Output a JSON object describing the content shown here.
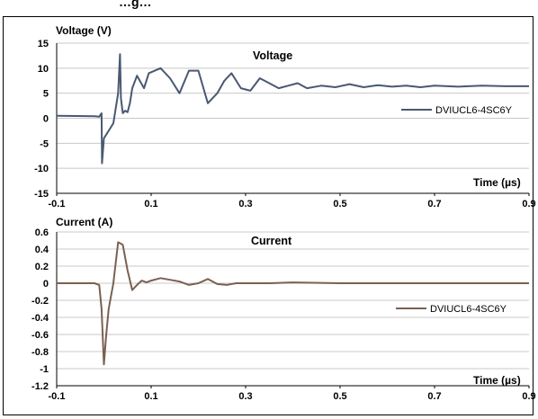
{
  "header_fragment": "…g…",
  "chart_data": [
    {
      "type": "line",
      "title": "Voltage",
      "ylabel": "Voltage (V)",
      "xlabel": "Time (µs)",
      "xlim": [
        -0.1,
        0.9
      ],
      "ylim": [
        -15,
        15
      ],
      "x_ticks": [
        "-0.1",
        "0.1",
        "0.3",
        "0.5",
        "0.7",
        "0.9"
      ],
      "y_ticks": [
        "15",
        "10",
        "5",
        "0",
        "-5",
        "-10",
        "-15"
      ],
      "grid": "horizontal",
      "legend_position": "right",
      "series": [
        {
          "name": "DVIUCL6-4SC6Y",
          "color": "#4a5872",
          "x": [
            -0.1,
            -0.02,
            -0.01,
            -0.005,
            -0.004,
            0.0,
            0.02,
            0.03,
            0.034,
            0.036,
            0.04,
            0.045,
            0.05,
            0.055,
            0.06,
            0.07,
            0.085,
            0.095,
            0.12,
            0.14,
            0.16,
            0.18,
            0.2,
            0.22,
            0.24,
            0.255,
            0.27,
            0.29,
            0.31,
            0.33,
            0.35,
            0.37,
            0.39,
            0.41,
            0.43,
            0.46,
            0.49,
            0.52,
            0.55,
            0.58,
            0.61,
            0.64,
            0.67,
            0.7,
            0.75,
            0.8,
            0.85,
            0.9
          ],
          "y": [
            0.5,
            0.4,
            0.3,
            1.0,
            -9.0,
            -4.0,
            -1.0,
            5.0,
            12.8,
            4.0,
            1.0,
            1.5,
            1.2,
            3.0,
            6.0,
            8.5,
            6.0,
            9.0,
            10.0,
            8.0,
            5.0,
            9.5,
            9.5,
            3.0,
            5.0,
            7.5,
            9.0,
            6.0,
            5.5,
            8.0,
            7.0,
            6.0,
            6.5,
            7.0,
            6.0,
            6.5,
            6.2,
            6.8,
            6.2,
            6.6,
            6.3,
            6.5,
            6.2,
            6.5,
            6.3,
            6.5,
            6.4,
            6.4
          ]
        }
      ]
    },
    {
      "type": "line",
      "title": "Current",
      "ylabel": "Current (A)",
      "xlabel": "Time (µs)",
      "xlim": [
        -0.1,
        0.9
      ],
      "ylim": [
        -1.2,
        0.6
      ],
      "x_ticks": [
        "-0.1",
        "0.1",
        "0.3",
        "0.5",
        "0.7",
        "0.9"
      ],
      "y_ticks": [
        "0.6",
        "0.4",
        "0.2",
        "0",
        "-0.2",
        "-0.4",
        "-0.6",
        "-0.8",
        "-1",
        "-1.2"
      ],
      "grid": "horizontal",
      "legend_position": "right",
      "series": [
        {
          "name": "DVIUCL6-4SC6Y",
          "color": "#7a6052",
          "x": [
            -0.1,
            -0.05,
            -0.02,
            -0.01,
            -0.005,
            0.0,
            0.005,
            0.01,
            0.02,
            0.03,
            0.04,
            0.05,
            0.06,
            0.07,
            0.08,
            0.09,
            0.1,
            0.12,
            0.14,
            0.16,
            0.18,
            0.2,
            0.22,
            0.24,
            0.26,
            0.28,
            0.3,
            0.35,
            0.4,
            0.5,
            0.6,
            0.7,
            0.8,
            0.9
          ],
          "y": [
            0.0,
            0.0,
            0.0,
            -0.02,
            -0.3,
            -0.95,
            -0.6,
            -0.3,
            0.0,
            0.48,
            0.45,
            0.15,
            -0.08,
            -0.02,
            0.03,
            0.01,
            0.03,
            0.06,
            0.04,
            0.02,
            -0.02,
            0.0,
            0.05,
            -0.01,
            -0.02,
            0.0,
            0.0,
            0.0,
            0.01,
            0.0,
            0.0,
            0.0,
            0.0,
            0.0
          ]
        }
      ]
    }
  ]
}
